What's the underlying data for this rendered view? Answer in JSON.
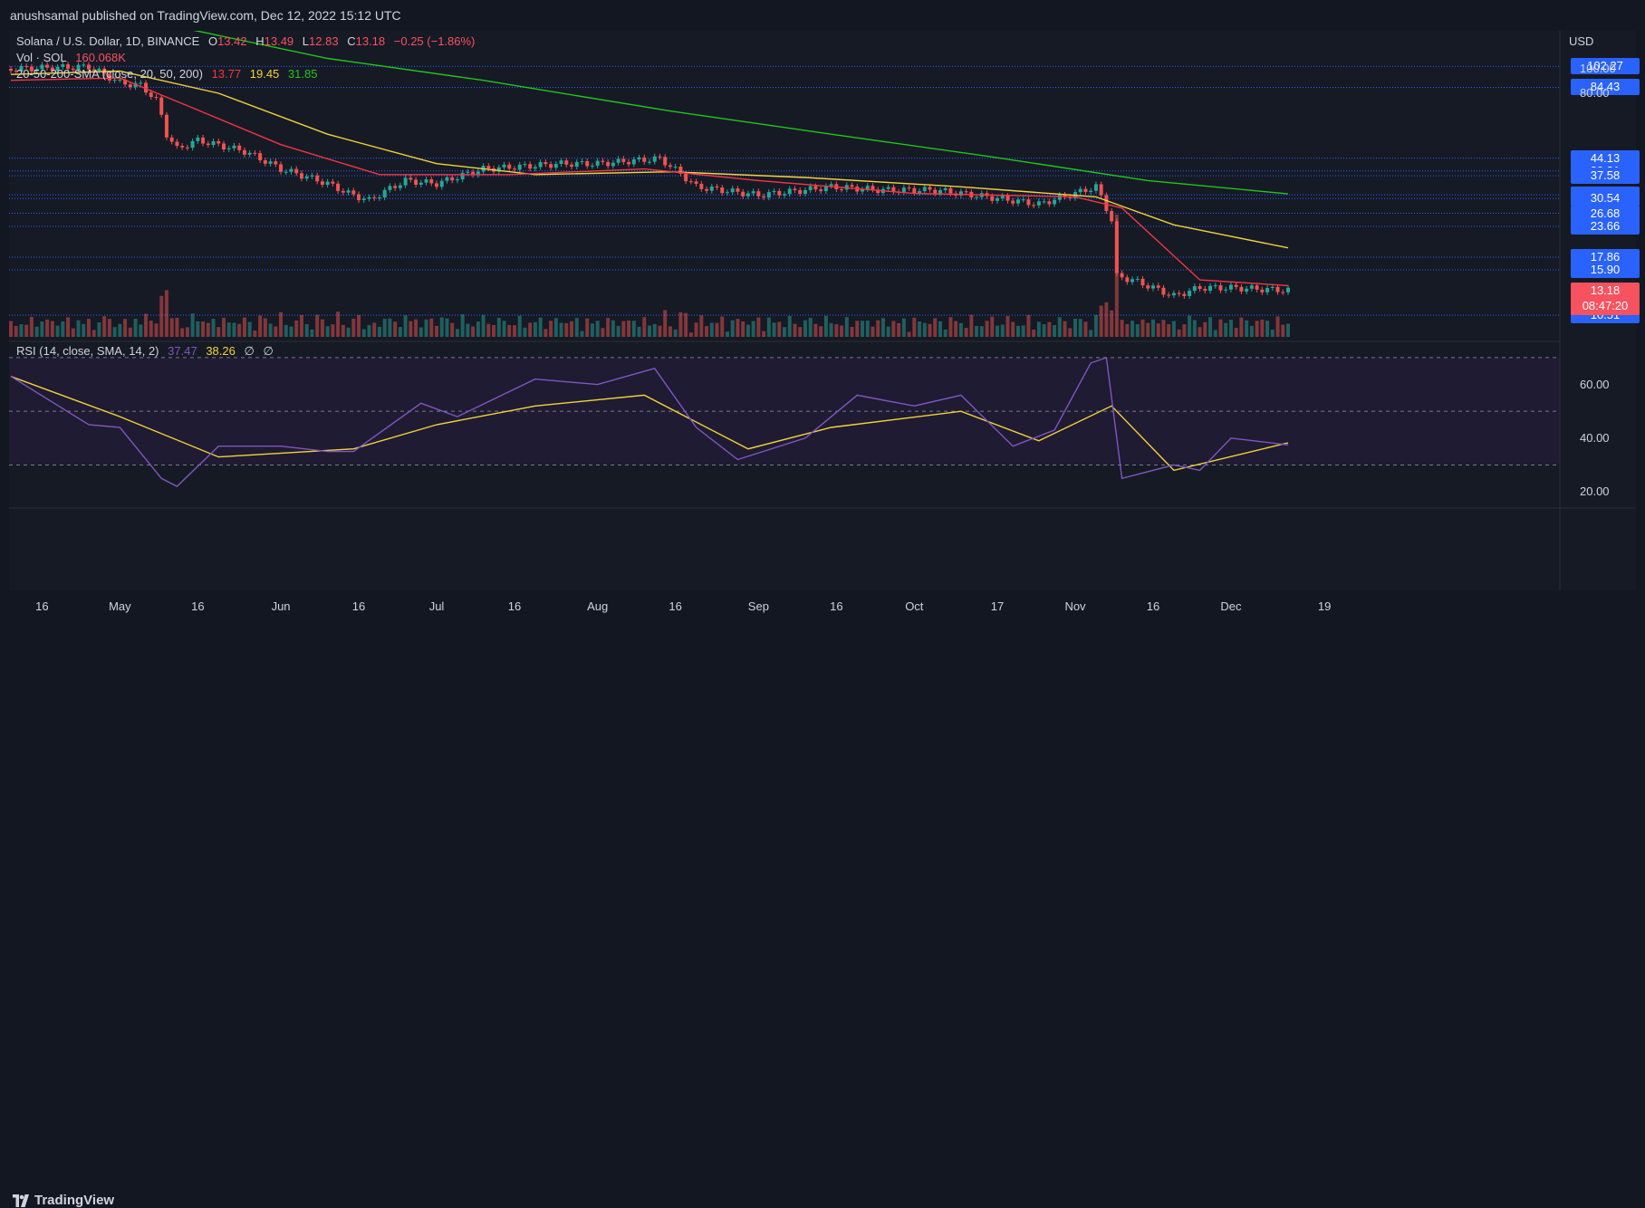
{
  "header": {
    "published_line": "anushsamal published on TradingView.com, Dec 12, 2022 15:12 UTC"
  },
  "legend": {
    "symbol_line": {
      "symbol": "Solana / U.S. Dollar, 1D, BINANCE",
      "o_label": "O",
      "o_value": "13.42",
      "h_label": "H",
      "h_value": "13.49",
      "l_label": "L",
      "l_value": "12.83",
      "c_label": "C",
      "c_value": "13.18",
      "change": "−0.25 (−1.86%)"
    },
    "vol_line": {
      "label": "Vol · SOL",
      "value": "160.068K"
    },
    "sma_line": {
      "label": "20-50-200-SMA (close, 20, 50, 200)",
      "sma20": "13.77",
      "sma50": "19.45",
      "sma200": "31.85"
    },
    "rsi_line": {
      "label": "RSI (14, close, SMA, 14, 2)",
      "rsi": "37.47",
      "rsi_sma": "38.26",
      "extra1": "∅",
      "extra2": "∅"
    }
  },
  "price_axis": {
    "currency": "USD",
    "badges": [
      {
        "value": "102.27",
        "color": "#2962ff"
      },
      {
        "value": "84.43",
        "color": "#2962ff"
      },
      {
        "value": "44.13",
        "color": "#2962ff"
      },
      {
        "value": "39.31",
        "color": "#2962ff"
      },
      {
        "value": "37.58",
        "color": "#2962ff"
      },
      {
        "value": "31.58",
        "color": "#2962ff"
      },
      {
        "value": "30.54",
        "color": "#2962ff"
      },
      {
        "value": "26.68",
        "color": "#2962ff"
      },
      {
        "value": "23.66",
        "color": "#2962ff"
      },
      {
        "value": "17.86",
        "color": "#2962ff"
      },
      {
        "value": "15.90",
        "color": "#2962ff"
      },
      {
        "value": "10.51",
        "color": "#2962ff"
      }
    ],
    "plain_ticks": [
      "100.00",
      "80.00"
    ],
    "last_price": {
      "value": "13.18",
      "countdown": "08:47:20",
      "color": "#f7525f"
    }
  },
  "rsi_axis": {
    "ticks": [
      "60.00",
      "40.00",
      "20.00"
    ]
  },
  "time_axis": {
    "ticks": [
      "16",
      "May",
      "16",
      "Jun",
      "16",
      "Jul",
      "16",
      "Aug",
      "16",
      "Sep",
      "16",
      "Oct",
      "17",
      "Nov",
      "16",
      "Dec",
      "19"
    ]
  },
  "brand": {
    "name": "TradingView"
  },
  "colors": {
    "up": "#26a69a",
    "down": "#ef5350",
    "sma20": "#f23645",
    "sma50": "#f3d23d",
    "sma200": "#22c51d",
    "rsi": "#7e57c2",
    "rsi_sma": "#f3d23d",
    "level_line": "#2962ff"
  },
  "chart_data": {
    "type": "line",
    "title": "Solana / U.S. Dollar, 1D, BINANCE",
    "x_start": "2022-04-10",
    "x_end": "2022-12-12",
    "price_scale": "log",
    "price_lines": [
      102.27,
      84.43,
      44.13,
      39.31,
      37.58,
      31.58,
      30.54,
      26.68,
      23.66,
      17.86,
      15.9,
      10.51
    ],
    "series": [
      {
        "name": "Price (close)",
        "x": [
          "2022-04-10",
          "2022-04-25",
          "2022-05-01",
          "2022-05-05",
          "2022-05-08",
          "2022-05-10",
          "2022-05-12",
          "2022-05-16",
          "2022-05-25",
          "2022-06-01",
          "2022-06-10",
          "2022-06-14",
          "2022-06-18",
          "2022-06-25",
          "2022-07-01",
          "2022-07-10",
          "2022-07-18",
          "2022-07-25",
          "2022-08-01",
          "2022-08-13",
          "2022-08-20",
          "2022-09-01",
          "2022-09-10",
          "2022-09-15",
          "2022-09-25",
          "2022-10-05",
          "2022-10-15",
          "2022-10-25",
          "2022-11-01",
          "2022-11-05",
          "2022-11-08",
          "2022-11-09",
          "2022-11-12",
          "2022-11-20",
          "2022-11-25",
          "2022-12-01",
          "2022-12-12"
        ],
        "y": [
          100,
          102,
          88,
          86,
          75,
          55,
          48,
          52,
          47,
          40,
          35,
          32,
          30,
          36,
          35,
          40,
          41,
          42,
          42,
          44,
          34,
          31.5,
          33,
          34,
          33,
          33,
          31,
          29,
          32,
          34,
          25,
          15,
          14.5,
          12.5,
          13.5,
          13.5,
          13.18
        ]
      },
      {
        "name": "SMA 20",
        "x": [
          "2022-04-10",
          "2022-05-01",
          "2022-05-15",
          "2022-06-01",
          "2022-06-20",
          "2022-07-15",
          "2022-08-10",
          "2022-09-01",
          "2022-10-01",
          "2022-11-01",
          "2022-11-10",
          "2022-11-25",
          "2022-12-12"
        ],
        "y": [
          90,
          92,
          70,
          50,
          38,
          38,
          40,
          36,
          32,
          31,
          28,
          14.5,
          13.77
        ]
      },
      {
        "name": "SMA 50",
        "x": [
          "2022-04-10",
          "2022-05-01",
          "2022-05-20",
          "2022-06-10",
          "2022-07-01",
          "2022-07-20",
          "2022-08-15",
          "2022-09-10",
          "2022-10-10",
          "2022-11-05",
          "2022-11-20",
          "2022-12-12"
        ],
        "y": [
          95,
          98,
          80,
          55,
          42,
          38,
          39,
          37,
          34,
          31,
          24,
          19.45
        ]
      },
      {
        "name": "SMA 200",
        "x": [
          "2022-04-10",
          "2022-05-10",
          "2022-06-10",
          "2022-07-10",
          "2022-08-15",
          "2022-09-15",
          "2022-10-15",
          "2022-11-15",
          "2022-12-12"
        ],
        "y": [
          180,
          150,
          110,
          90,
          68,
          55,
          45,
          36,
          31.85
        ]
      },
      {
        "name": "RSI",
        "x": [
          "2022-04-10",
          "2022-04-25",
          "2022-05-01",
          "2022-05-09",
          "2022-05-12",
          "2022-05-20",
          "2022-06-01",
          "2022-06-10",
          "2022-06-15",
          "2022-06-28",
          "2022-07-05",
          "2022-07-20",
          "2022-08-01",
          "2022-08-12",
          "2022-08-20",
          "2022-08-28",
          "2022-09-10",
          "2022-09-20",
          "2022-10-01",
          "2022-10-10",
          "2022-10-20",
          "2022-10-28",
          "2022-11-04",
          "2022-11-07",
          "2022-11-10",
          "2022-11-20",
          "2022-11-25",
          "2022-12-01",
          "2022-12-12"
        ],
        "y": [
          63,
          45,
          44,
          25,
          22,
          37,
          37,
          35,
          35,
          53,
          48,
          62,
          60,
          66,
          44,
          32,
          40,
          56,
          52,
          56,
          37,
          43,
          68,
          70,
          25,
          30,
          28,
          40,
          37.47
        ]
      },
      {
        "name": "RSI SMA",
        "x": [
          "2022-04-10",
          "2022-05-01",
          "2022-05-20",
          "2022-06-15",
          "2022-07-01",
          "2022-07-20",
          "2022-08-10",
          "2022-08-30",
          "2022-09-15",
          "2022-10-10",
          "2022-10-25",
          "2022-11-08",
          "2022-11-20",
          "2022-12-12"
        ],
        "y": [
          63,
          48,
          33,
          36,
          45,
          52,
          56,
          36,
          44,
          50,
          39,
          52,
          28,
          38.26
        ]
      }
    ],
    "rsi_range": [
      20,
      70
    ],
    "rsi_levels": [
      70,
      50,
      30
    ]
  }
}
